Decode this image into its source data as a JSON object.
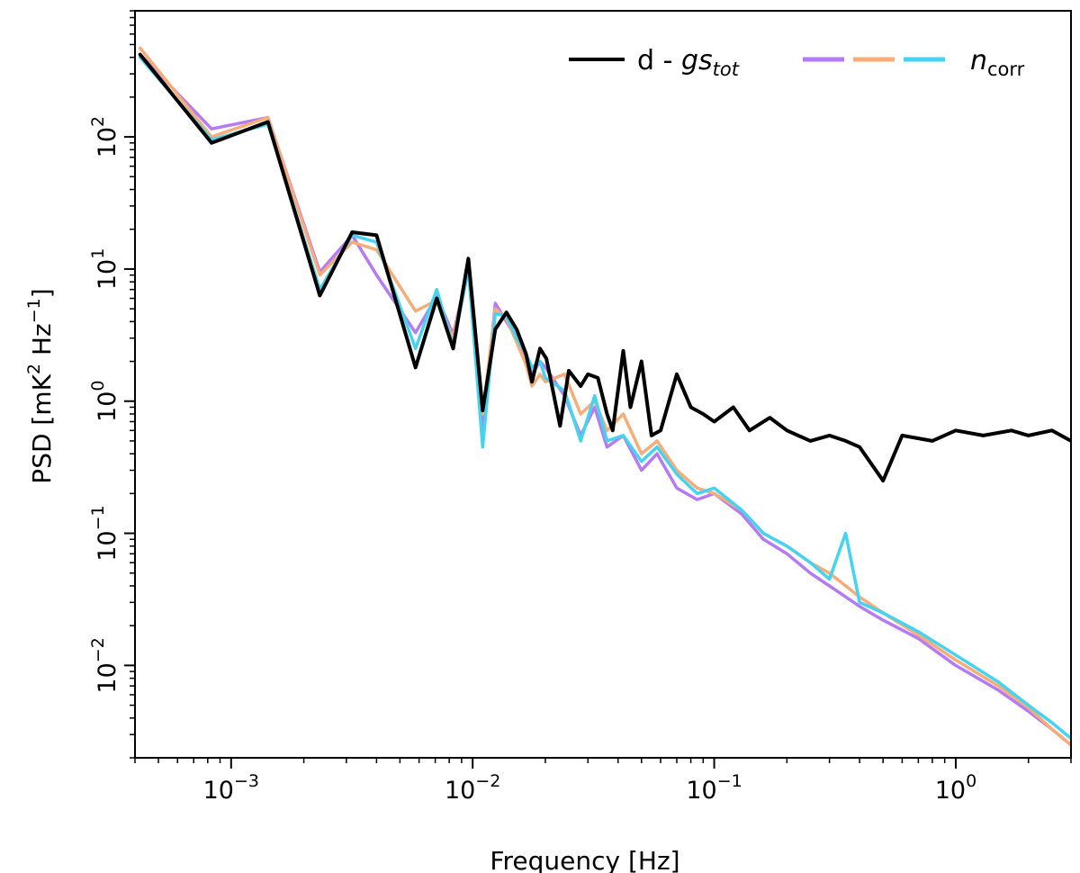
{
  "chart_data": {
    "type": "line",
    "xlabel": "Frequency [Hz]",
    "ylabel_parts": [
      "PSD [mK",
      "2",
      " Hz",
      "−1",
      "]"
    ],
    "x_scale": "log",
    "y_scale": "log",
    "xlim": [
      0.0004,
      3.0
    ],
    "ylim": [
      0.002,
      900
    ],
    "x_ticks": [
      {
        "base": "10",
        "exp": "−3",
        "value": 0.001
      },
      {
        "base": "10",
        "exp": "−2",
        "value": 0.01
      },
      {
        "base": "10",
        "exp": "−1",
        "value": 0.1
      },
      {
        "base": "10",
        "exp": "0",
        "value": 1
      }
    ],
    "y_ticks": [
      {
        "base": "10",
        "exp": "−2",
        "value": 0.01
      },
      {
        "base": "10",
        "exp": "−1",
        "value": 0.1
      },
      {
        "base": "10",
        "exp": "0",
        "value": 1
      },
      {
        "base": "10",
        "exp": "1",
        "value": 10
      },
      {
        "base": "10",
        "exp": "2",
        "value": 100
      }
    ],
    "grid": false,
    "legend": {
      "placement": "top-right",
      "entries": [
        {
          "text_main": "d - ",
          "text_italic": "gs",
          "text_sub": "tot",
          "color": "#000000"
        },
        {
          "text_italic": "n",
          "text_sub": "corr",
          "colors": [
            "#b57bf2",
            "#f6ad7a",
            "#45d3ef"
          ]
        }
      ]
    },
    "series": [
      {
        "color": "#b57bf2",
        "x": [
          0.00042,
          0.00083,
          0.00142,
          0.00233,
          0.00317,
          0.004,
          0.0058,
          0.0071,
          0.0083,
          0.0096,
          0.011,
          0.0124,
          0.0138,
          0.0152,
          0.0166,
          0.0176,
          0.019,
          0.02,
          0.024,
          0.028,
          0.032,
          0.036,
          0.042,
          0.05,
          0.058,
          0.07,
          0.085,
          0.1,
          0.13,
          0.16,
          0.2,
          0.25,
          0.3,
          0.4,
          0.5,
          0.7,
          1.0,
          1.5,
          2.0,
          2.5,
          3.0
        ],
        "y": [
          420,
          115,
          140,
          9.5,
          18,
          9,
          3.3,
          6.2,
          3.2,
          10,
          0.6,
          5.5,
          4.0,
          3.0,
          2.2,
          1.6,
          2.0,
          1.8,
          1.1,
          0.55,
          0.9,
          0.45,
          0.55,
          0.3,
          0.4,
          0.22,
          0.18,
          0.2,
          0.14,
          0.09,
          0.07,
          0.05,
          0.04,
          0.028,
          0.022,
          0.016,
          0.01,
          0.0065,
          0.0045,
          0.0033,
          0.0025
        ]
      },
      {
        "color": "#f6ad7a",
        "x": [
          0.00042,
          0.00083,
          0.00142,
          0.00233,
          0.00317,
          0.004,
          0.0058,
          0.0071,
          0.0083,
          0.0096,
          0.011,
          0.0124,
          0.0138,
          0.0152,
          0.0166,
          0.0176,
          0.019,
          0.02,
          0.024,
          0.028,
          0.032,
          0.036,
          0.042,
          0.05,
          0.058,
          0.07,
          0.085,
          0.1,
          0.13,
          0.16,
          0.2,
          0.25,
          0.3,
          0.4,
          0.5,
          0.7,
          1.0,
          1.5,
          2.0,
          2.5,
          3.0
        ],
        "y": [
          470,
          100,
          140,
          9.0,
          16,
          14,
          4.8,
          5.8,
          3.0,
          10,
          0.8,
          5.0,
          4.2,
          2.8,
          1.9,
          1.3,
          1.6,
          1.4,
          1.6,
          0.8,
          1.0,
          0.6,
          0.8,
          0.4,
          0.5,
          0.3,
          0.22,
          0.2,
          0.15,
          0.1,
          0.08,
          0.06,
          0.05,
          0.033,
          0.025,
          0.017,
          0.011,
          0.007,
          0.0048,
          0.0033,
          0.0025
        ]
      },
      {
        "color": "#45d3ef",
        "x": [
          0.00042,
          0.00083,
          0.00142,
          0.00233,
          0.00317,
          0.004,
          0.0058,
          0.0071,
          0.0083,
          0.0096,
          0.011,
          0.0124,
          0.0138,
          0.0152,
          0.0166,
          0.0176,
          0.019,
          0.02,
          0.024,
          0.028,
          0.032,
          0.036,
          0.042,
          0.05,
          0.058,
          0.07,
          0.085,
          0.1,
          0.13,
          0.16,
          0.2,
          0.25,
          0.3,
          0.35,
          0.4,
          0.5,
          0.7,
          1.0,
          1.5,
          2.0,
          2.5,
          3.0
        ],
        "y": [
          400,
          95,
          125,
          7.0,
          18,
          16,
          2.5,
          7.0,
          2.6,
          10,
          0.45,
          4.6,
          4.4,
          3.0,
          2.3,
          1.8,
          2.0,
          1.5,
          1.2,
          0.5,
          1.1,
          0.5,
          0.55,
          0.35,
          0.45,
          0.28,
          0.2,
          0.22,
          0.15,
          0.1,
          0.08,
          0.06,
          0.045,
          0.1,
          0.03,
          0.025,
          0.018,
          0.012,
          0.0075,
          0.005,
          0.0037,
          0.0028
        ]
      },
      {
        "color": "#000000",
        "x": [
          0.00042,
          0.00083,
          0.00142,
          0.00233,
          0.00317,
          0.004,
          0.0058,
          0.0071,
          0.0083,
          0.0096,
          0.011,
          0.0124,
          0.0138,
          0.0152,
          0.0166,
          0.0176,
          0.019,
          0.0202,
          0.023,
          0.025,
          0.028,
          0.03,
          0.033,
          0.036,
          0.038,
          0.042,
          0.045,
          0.05,
          0.055,
          0.06,
          0.07,
          0.08,
          0.09,
          0.1,
          0.12,
          0.14,
          0.17,
          0.2,
          0.25,
          0.3,
          0.35,
          0.4,
          0.5,
          0.6,
          0.8,
          1.0,
          1.3,
          1.7,
          2.0,
          2.5,
          3.0
        ],
        "y": [
          420,
          90,
          130,
          6.3,
          19,
          18,
          1.8,
          6.0,
          2.5,
          12,
          0.85,
          3.5,
          4.7,
          3.5,
          2.3,
          1.4,
          2.5,
          2.1,
          0.65,
          1.7,
          1.3,
          1.6,
          1.5,
          0.8,
          0.6,
          2.4,
          0.9,
          2.0,
          0.55,
          0.6,
          1.6,
          0.9,
          0.8,
          0.7,
          0.9,
          0.6,
          0.75,
          0.6,
          0.5,
          0.55,
          0.5,
          0.45,
          0.25,
          0.55,
          0.5,
          0.6,
          0.55,
          0.6,
          0.55,
          0.6,
          0.5
        ]
      }
    ]
  }
}
